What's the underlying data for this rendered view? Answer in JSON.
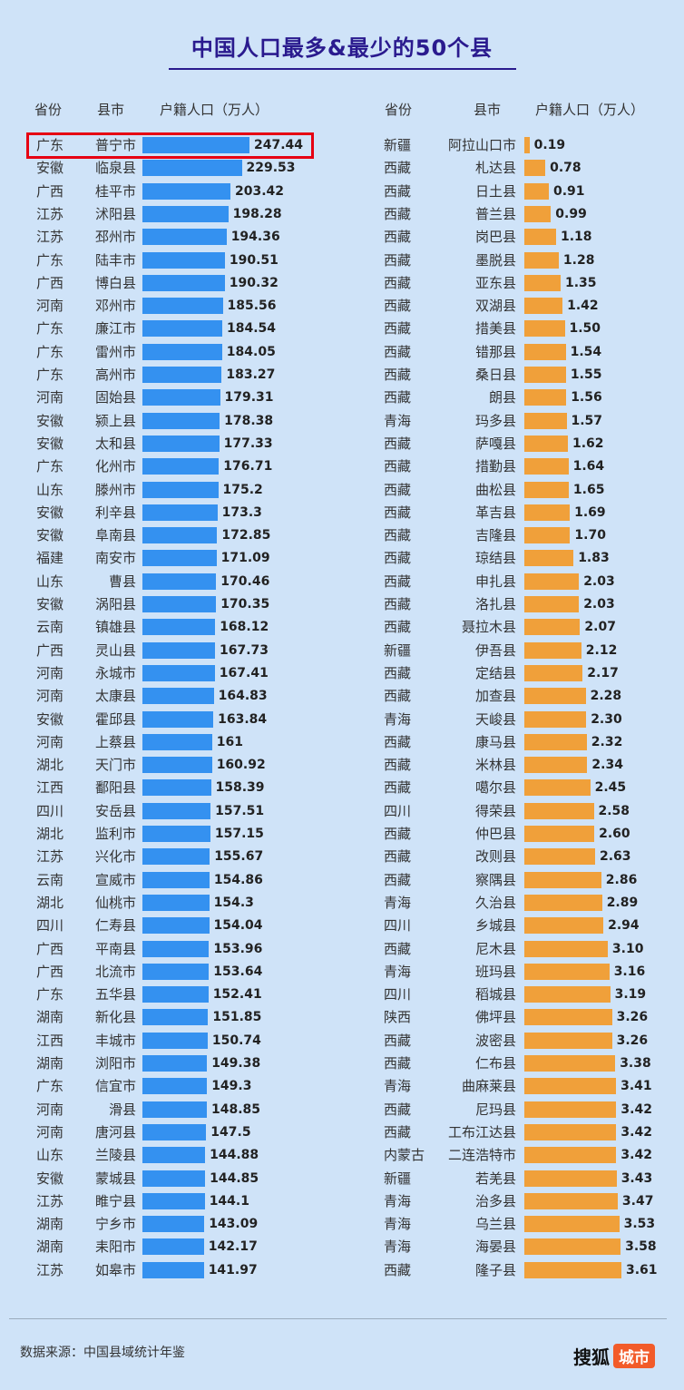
{
  "title": "中国人口最多&最少的50个县",
  "headers": {
    "left": {
      "province": "省份",
      "county": "县市",
      "pop": "户籍人口（万人）"
    },
    "right": {
      "province": "省份",
      "county": "县市",
      "pop": "户籍人口（万人）"
    }
  },
  "colors": {
    "most_bar": "#3491f0",
    "least_bar": "#f0a03a",
    "highlight": "#e60012",
    "title": "#2a1a8e",
    "background": "#cfe3f8"
  },
  "source": "数据来源：中国县域统计年鉴",
  "logo": {
    "text": "搜狐",
    "badge": "城市"
  },
  "chart_data": [
    {
      "type": "bar",
      "orientation": "horizontal",
      "title": "中国人口最多的50个县",
      "value_label": "户籍人口（万人）",
      "rows": [
        {
          "province": "广东",
          "county": "普宁市",
          "value": "247.44"
        },
        {
          "province": "安徽",
          "county": "临泉县",
          "value": "229.53"
        },
        {
          "province": "广西",
          "county": "桂平市",
          "value": "203.42"
        },
        {
          "province": "江苏",
          "county": "沭阳县",
          "value": "198.28"
        },
        {
          "province": "江苏",
          "county": "邳州市",
          "value": "194.36"
        },
        {
          "province": "广东",
          "county": "陆丰市",
          "value": "190.51"
        },
        {
          "province": "广西",
          "county": "博白县",
          "value": "190.32"
        },
        {
          "province": "河南",
          "county": "邓州市",
          "value": "185.56"
        },
        {
          "province": "广东",
          "county": "廉江市",
          "value": "184.54"
        },
        {
          "province": "广东",
          "county": "雷州市",
          "value": "184.05"
        },
        {
          "province": "广东",
          "county": "高州市",
          "value": "183.27"
        },
        {
          "province": "河南",
          "county": "固始县",
          "value": "179.31"
        },
        {
          "province": "安徽",
          "county": "颍上县",
          "value": "178.38"
        },
        {
          "province": "安徽",
          "county": "太和县",
          "value": "177.33"
        },
        {
          "province": "广东",
          "county": "化州市",
          "value": "176.71"
        },
        {
          "province": "山东",
          "county": "滕州市",
          "value": "175.2"
        },
        {
          "province": "安徽",
          "county": "利辛县",
          "value": "173.3"
        },
        {
          "province": "安徽",
          "county": "阜南县",
          "value": "172.85"
        },
        {
          "province": "福建",
          "county": "南安市",
          "value": "171.09"
        },
        {
          "province": "山东",
          "county": "曹县",
          "value": "170.46"
        },
        {
          "province": "安徽",
          "county": "涡阳县",
          "value": "170.35"
        },
        {
          "province": "云南",
          "county": "镇雄县",
          "value": "168.12"
        },
        {
          "province": "广西",
          "county": "灵山县",
          "value": "167.73"
        },
        {
          "province": "河南",
          "county": "永城市",
          "value": "167.41"
        },
        {
          "province": "河南",
          "county": "太康县",
          "value": "164.83"
        },
        {
          "province": "安徽",
          "county": "霍邱县",
          "value": "163.84"
        },
        {
          "province": "河南",
          "county": "上蔡县",
          "value": "161"
        },
        {
          "province": "湖北",
          "county": "天门市",
          "value": "160.92"
        },
        {
          "province": "江西",
          "county": "鄱阳县",
          "value": "158.39"
        },
        {
          "province": "四川",
          "county": "安岳县",
          "value": "157.51"
        },
        {
          "province": "湖北",
          "county": "监利市",
          "value": "157.15"
        },
        {
          "province": "江苏",
          "county": "兴化市",
          "value": "155.67"
        },
        {
          "province": "云南",
          "county": "宣威市",
          "value": "154.86"
        },
        {
          "province": "湖北",
          "county": "仙桃市",
          "value": "154.3"
        },
        {
          "province": "四川",
          "county": "仁寿县",
          "value": "154.04"
        },
        {
          "province": "广西",
          "county": "平南县",
          "value": "153.96"
        },
        {
          "province": "广西",
          "county": "北流市",
          "value": "153.64"
        },
        {
          "province": "广东",
          "county": "五华县",
          "value": "152.41"
        },
        {
          "province": "湖南",
          "county": "新化县",
          "value": "151.85"
        },
        {
          "province": "江西",
          "county": "丰城市",
          "value": "150.74"
        },
        {
          "province": "湖南",
          "county": "浏阳市",
          "value": "149.38"
        },
        {
          "province": "广东",
          "county": "信宜市",
          "value": "149.3"
        },
        {
          "province": "河南",
          "county": "滑县",
          "value": "148.85"
        },
        {
          "province": "河南",
          "county": "唐河县",
          "value": "147.5"
        },
        {
          "province": "山东",
          "county": "兰陵县",
          "value": "144.88"
        },
        {
          "province": "安徽",
          "county": "蒙城县",
          "value": "144.85"
        },
        {
          "province": "江苏",
          "county": "睢宁县",
          "value": "144.1"
        },
        {
          "province": "湖南",
          "county": "宁乡市",
          "value": "143.09"
        },
        {
          "province": "湖南",
          "county": "耒阳市",
          "value": "142.17"
        },
        {
          "province": "江苏",
          "county": "如皋市",
          "value": "141.97"
        }
      ]
    },
    {
      "type": "bar",
      "orientation": "horizontal",
      "title": "中国人口最少的50个县",
      "value_label": "户籍人口（万人）",
      "rows": [
        {
          "province": "新疆",
          "county": "阿拉山口市",
          "value": "0.19"
        },
        {
          "province": "西藏",
          "county": "札达县",
          "value": "0.78"
        },
        {
          "province": "西藏",
          "county": "日土县",
          "value": "0.91"
        },
        {
          "province": "西藏",
          "county": "普兰县",
          "value": "0.99"
        },
        {
          "province": "西藏",
          "county": "岗巴县",
          "value": "1.18"
        },
        {
          "province": "西藏",
          "county": "墨脱县",
          "value": "1.28"
        },
        {
          "province": "西藏",
          "county": "亚东县",
          "value": "1.35"
        },
        {
          "province": "西藏",
          "county": "双湖县",
          "value": "1.42"
        },
        {
          "province": "西藏",
          "county": "措美县",
          "value": "1.50"
        },
        {
          "province": "西藏",
          "county": "错那县",
          "value": "1.54"
        },
        {
          "province": "西藏",
          "county": "桑日县",
          "value": "1.55"
        },
        {
          "province": "西藏",
          "county": "朗县",
          "value": "1.56"
        },
        {
          "province": "青海",
          "county": "玛多县",
          "value": "1.57"
        },
        {
          "province": "西藏",
          "county": "萨嘎县",
          "value": "1.62"
        },
        {
          "province": "西藏",
          "county": "措勤县",
          "value": "1.64"
        },
        {
          "province": "西藏",
          "county": "曲松县",
          "value": "1.65"
        },
        {
          "province": "西藏",
          "county": "革吉县",
          "value": "1.69"
        },
        {
          "province": "西藏",
          "county": "吉隆县",
          "value": "1.70"
        },
        {
          "province": "西藏",
          "county": "琼结县",
          "value": "1.83"
        },
        {
          "province": "西藏",
          "county": "申扎县",
          "value": "2.03"
        },
        {
          "province": "西藏",
          "county": "洛扎县",
          "value": "2.03"
        },
        {
          "province": "西藏",
          "county": "聂拉木县",
          "value": "2.07"
        },
        {
          "province": "新疆",
          "county": "伊吾县",
          "value": "2.12"
        },
        {
          "province": "西藏",
          "county": "定结县",
          "value": "2.17"
        },
        {
          "province": "西藏",
          "county": "加查县",
          "value": "2.28"
        },
        {
          "province": "青海",
          "county": "天峻县",
          "value": "2.30"
        },
        {
          "province": "西藏",
          "county": "康马县",
          "value": "2.32"
        },
        {
          "province": "西藏",
          "county": "米林县",
          "value": "2.34"
        },
        {
          "province": "西藏",
          "county": "噶尔县",
          "value": "2.45"
        },
        {
          "province": "四川",
          "county": "得荣县",
          "value": "2.58"
        },
        {
          "province": "西藏",
          "county": "仲巴县",
          "value": "2.60"
        },
        {
          "province": "西藏",
          "county": "改则县",
          "value": "2.63"
        },
        {
          "province": "西藏",
          "county": "察隅县",
          "value": "2.86"
        },
        {
          "province": "青海",
          "county": "久治县",
          "value": "2.89"
        },
        {
          "province": "四川",
          "county": "乡城县",
          "value": "2.94"
        },
        {
          "province": "西藏",
          "county": "尼木县",
          "value": "3.10"
        },
        {
          "province": "青海",
          "county": "班玛县",
          "value": "3.16"
        },
        {
          "province": "四川",
          "county": "稻城县",
          "value": "3.19"
        },
        {
          "province": "陕西",
          "county": "佛坪县",
          "value": "3.26"
        },
        {
          "province": "西藏",
          "county": "波密县",
          "value": "3.26"
        },
        {
          "province": "西藏",
          "county": "仁布县",
          "value": "3.38"
        },
        {
          "province": "青海",
          "county": "曲麻莱县",
          "value": "3.41"
        },
        {
          "province": "西藏",
          "county": "尼玛县",
          "value": "3.42"
        },
        {
          "province": "西藏",
          "county": "工布江达县",
          "value": "3.42"
        },
        {
          "province": "内蒙古",
          "county": "二连浩特市",
          "value": "3.42"
        },
        {
          "province": "新疆",
          "county": "若羌县",
          "value": "3.43"
        },
        {
          "province": "青海",
          "county": "治多县",
          "value": "3.47"
        },
        {
          "province": "青海",
          "county": "乌兰县",
          "value": "3.53"
        },
        {
          "province": "青海",
          "county": "海晏县",
          "value": "3.58"
        },
        {
          "province": "西藏",
          "county": "隆子县",
          "value": "3.61"
        }
      ]
    }
  ]
}
